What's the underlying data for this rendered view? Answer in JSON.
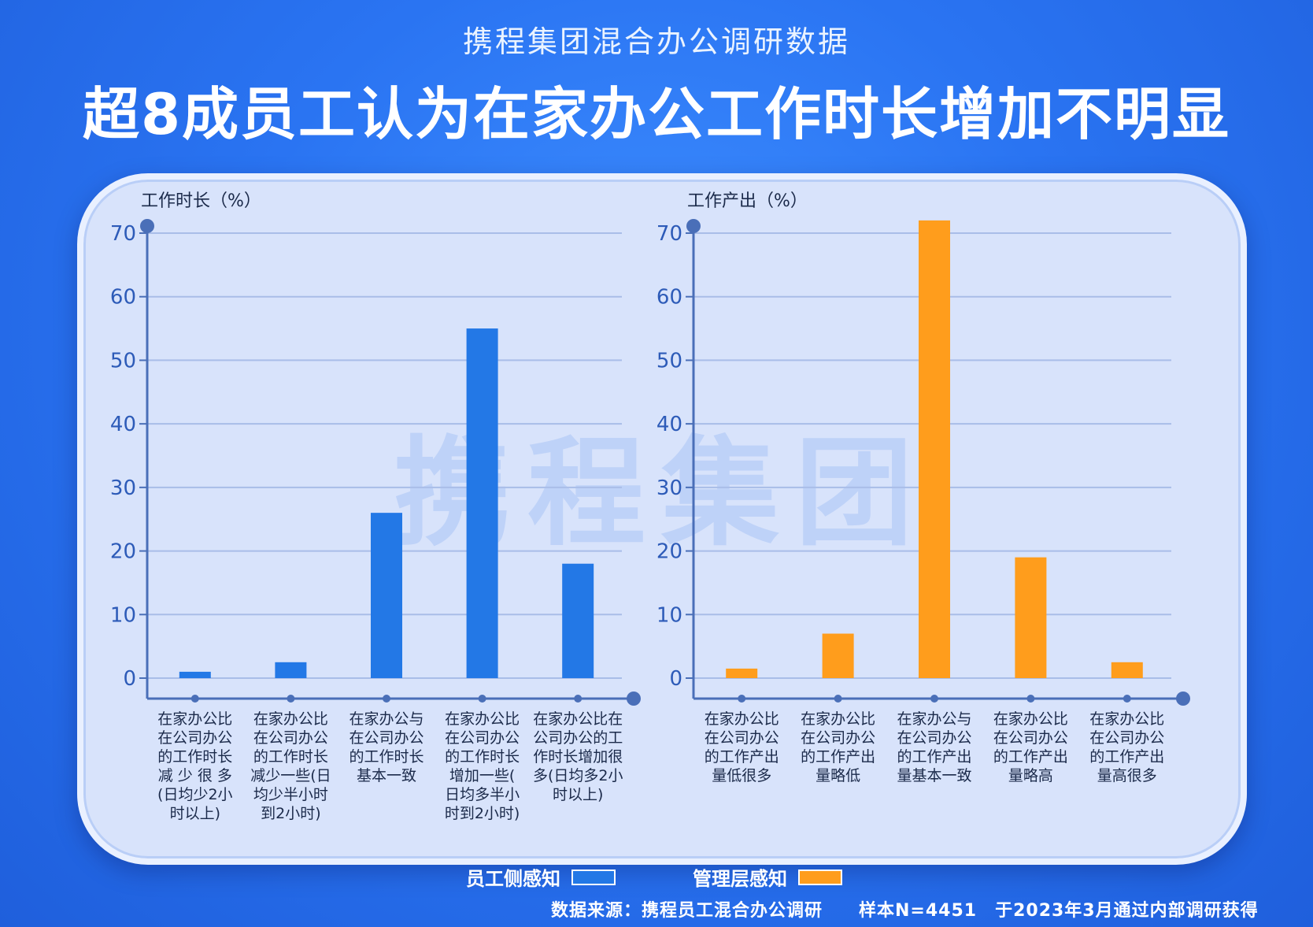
{
  "header": {
    "subtitle": "携程集团混合办公调研数据",
    "headline": "超8成员工认为在家办公工作时长增加不明显"
  },
  "watermark": "携程集团",
  "legend": {
    "employee": "员工侧感知",
    "manager": "管理层感知"
  },
  "source": "数据来源：携程员工混合办公调研　　样本N=4451　于2023年3月通过内部调研获得",
  "colors": {
    "employee": "#2378e6",
    "manager": "#ff9d1c"
  },
  "chart_data": [
    {
      "type": "bar",
      "ylabel": "工作时长（%）",
      "ylim": [
        0,
        70
      ],
      "yticks": [
        0,
        10,
        20,
        30,
        40,
        50,
        60,
        70
      ],
      "series": [
        {
          "name": "员工侧感知",
          "values": [
            1,
            2.5,
            26,
            55,
            18
          ]
        }
      ],
      "categories": [
        "在家办公比在公司办公的工作时长减 少 很 多(日均少2小时以上)",
        "在家办公比在公司办公的工作时长减少一些(日均少半小时到2小时)",
        "在家办公与在公司办公的工作时长基本一致",
        "在家办公比在公司办公的工作时长增加一些(日均多半小时到2小时)",
        "在家办公比在公司办公的工作时长增加很多(日均多2小时以上)"
      ],
      "category_lines": [
        [
          "在家办公比",
          "在公司办公",
          "的工作时长",
          "减 少 很 多",
          "(日均少2小",
          "时以上)"
        ],
        [
          "在家办公比",
          "在公司办公",
          "的工作时长",
          "减少一些(日",
          "均少半小时",
          "到2小时)"
        ],
        [
          "在家办公与",
          "在公司办公",
          "的工作时长",
          "基本一致"
        ],
        [
          "在家办公比",
          "在公司办公",
          "的工作时长",
          "增加一些(",
          "日均多半小",
          "时到2小时)"
        ],
        [
          "在家办公比在",
          "公司办公的工",
          "作时长增加很",
          "多(日均多2小",
          "时以上)"
        ]
      ]
    },
    {
      "type": "bar",
      "ylabel": "工作产出（%）",
      "ylim": [
        0,
        70
      ],
      "yticks": [
        0,
        10,
        20,
        30,
        40,
        50,
        60,
        70
      ],
      "series": [
        {
          "name": "管理层感知",
          "values": [
            1.5,
            7,
            72,
            19,
            2.5
          ]
        }
      ],
      "categories": [
        "在家办公比在公司办公的工作产出量低很多",
        "在家办公比在公司办公的工作产出量略低",
        "在家办公与在公司办公的工作产出量基本一致",
        "在家办公比在公司办公的工作产出量略高",
        "在家办公比在公司办公的工作产出量高很多"
      ],
      "category_lines": [
        [
          "在家办公比",
          "在公司办公",
          "的工作产出",
          "量低很多"
        ],
        [
          "在家办公比",
          "在公司办公",
          "的工作产出",
          "量略低"
        ],
        [
          "在家办公与",
          "在公司办公",
          "的工作产出",
          "量基本一致"
        ],
        [
          "在家办公比",
          "在公司办公",
          "的工作产出",
          "量略高"
        ],
        [
          "在家办公比",
          "在公司办公",
          "的工作产出",
          "量高很多"
        ]
      ]
    }
  ]
}
